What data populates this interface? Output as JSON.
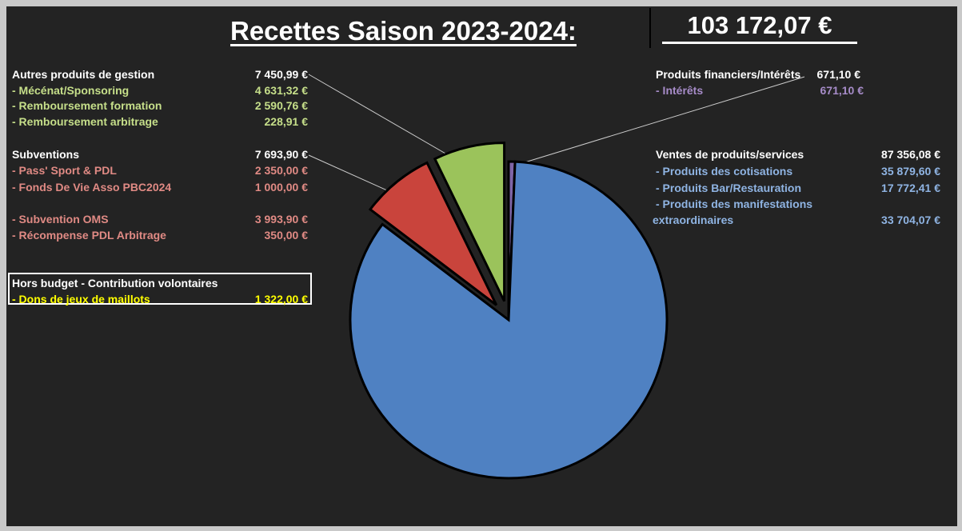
{
  "title": "Recettes Saison 2023-2024:",
  "total": "103 172,07 €",
  "colors": {
    "ventes": "#4f81c2",
    "subventions": "#c9443c",
    "autres": "#9bc35b",
    "financiers": "#7f65a6",
    "background": "#232323"
  },
  "left": {
    "autres": {
      "header": "Autres produits de gestion",
      "header_value": "7 450,99 €",
      "items": [
        {
          "label": "- Mécénat/Sponsoring",
          "value": "4 631,32 €"
        },
        {
          "label": "- Remboursement formation",
          "value": "2 590,76 €"
        },
        {
          "label": "- Remboursement arbitrage",
          "value": "228,91 €"
        }
      ]
    },
    "subventions": {
      "header": "Subventions",
      "header_value": "7 693,90 €",
      "items": [
        {
          "label": "- Pass' Sport & PDL",
          "value": "2 350,00 €"
        },
        {
          "label": "- Fonds De Vie Asso PBC2024",
          "value": "1 000,00 €"
        },
        {
          "label": "- Subvention OMS",
          "value": "3 993,90 €"
        },
        {
          "label": "- Récompense PDL Arbitrage",
          "value": "350,00 €"
        }
      ]
    },
    "hors_budget": {
      "header": "Hors budget - Contribution volontaires",
      "item_label": "- Dons de jeux de maillots",
      "item_value": "1 322,00 €"
    }
  },
  "right": {
    "financiers": {
      "header": "Produits financiers/Intérêts",
      "header_value": "671,10 €",
      "items": [
        {
          "label": "- Intérêts",
          "value": "671,10 €"
        }
      ]
    },
    "ventes": {
      "header": "Ventes de produits/services",
      "header_value": "87 356,08 €",
      "items": [
        {
          "label": "- Produits des cotisations",
          "value": "35 879,60 €"
        },
        {
          "label": "- Produits Bar/Restauration",
          "value": "17 772,41 €"
        },
        {
          "label": "- Produits des manifestations",
          "label2": "extraordinaires",
          "value": "33 704,07 €"
        }
      ]
    }
  },
  "chart_data": {
    "type": "pie",
    "title": "Recettes Saison 2023-2024:",
    "slices": [
      {
        "name": "Produits financiers/Intérêts",
        "value": 671.1
      },
      {
        "name": "Ventes de produits/services",
        "value": 87356.08
      },
      {
        "name": "Subventions",
        "value": 7693.9
      },
      {
        "name": "Autres produits de gestion",
        "value": 7450.99
      }
    ],
    "exploded": [
      "Subventions",
      "Autres produits de gestion"
    ]
  }
}
